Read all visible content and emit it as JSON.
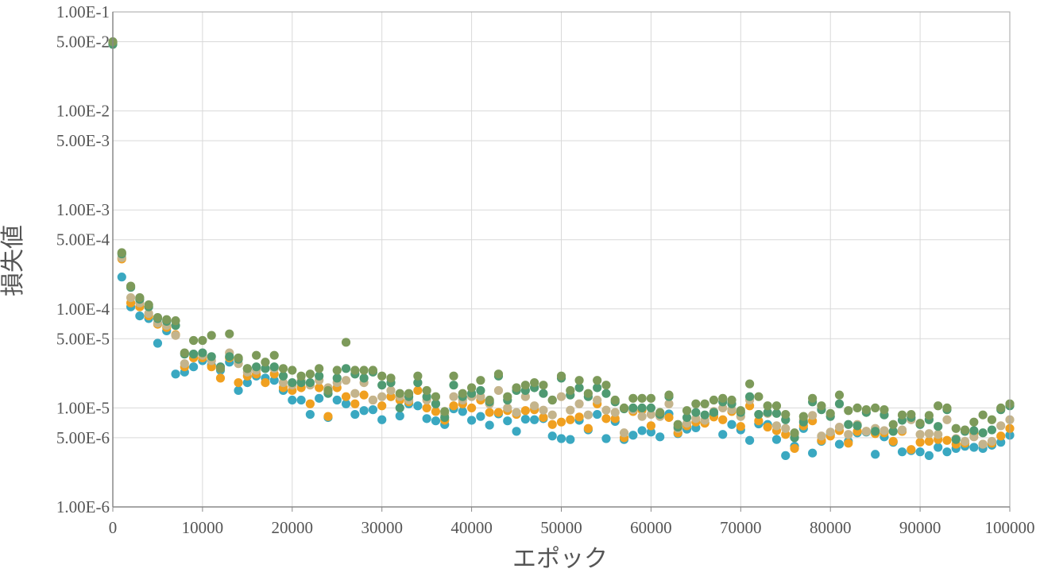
{
  "chart_data": {
    "type": "scatter",
    "xlabel": "エポック",
    "ylabel": "損失値",
    "xlim": [
      0,
      100000
    ],
    "ylim": [
      1e-06,
      0.1
    ],
    "yscale": "log",
    "grid": true,
    "x_ticks": [
      "0",
      "10000",
      "20000",
      "30000",
      "40000",
      "50000",
      "60000",
      "70000",
      "80000",
      "90000",
      "100000"
    ],
    "y_ticks": [
      {
        "value": 0.1,
        "label": "1.00E-1"
      },
      {
        "value": 0.05,
        "label": "5.00E-2"
      },
      {
        "value": 0.01,
        "label": "1.00E-2"
      },
      {
        "value": 0.005,
        "label": "5.00E-3"
      },
      {
        "value": 0.001,
        "label": "1.00E-3"
      },
      {
        "value": 0.0005,
        "label": "5.00E-4"
      },
      {
        "value": 0.0001,
        "label": "1.00E-4"
      },
      {
        "value": 5e-05,
        "label": "5.00E-5"
      },
      {
        "value": 1e-05,
        "label": "1.00E-5"
      },
      {
        "value": 5e-06,
        "label": "5.00E-6"
      },
      {
        "value": 1e-06,
        "label": "1.00E-6"
      }
    ],
    "x": [
      0,
      1000,
      2000,
      3000,
      4000,
      5000,
      6000,
      7000,
      8000,
      9000,
      10000,
      11000,
      12000,
      13000,
      14000,
      15000,
      16000,
      17000,
      18000,
      19000,
      20000,
      21000,
      22000,
      23000,
      24000,
      25000,
      26000,
      27000,
      28000,
      29000,
      30000,
      31000,
      32000,
      33000,
      34000,
      35000,
      36000,
      37000,
      38000,
      39000,
      40000,
      41000,
      42000,
      43000,
      44000,
      45000,
      46000,
      47000,
      48000,
      49000,
      50000,
      51000,
      52000,
      53000,
      54000,
      55000,
      56000,
      57000,
      58000,
      59000,
      60000,
      61000,
      62000,
      63000,
      64000,
      65000,
      66000,
      67000,
      68000,
      69000,
      70000,
      71000,
      72000,
      73000,
      74000,
      75000,
      76000,
      77000,
      78000,
      79000,
      80000,
      81000,
      82000,
      83000,
      84000,
      85000,
      86000,
      87000,
      88000,
      89000,
      90000,
      91000,
      92000,
      93000,
      94000,
      95000,
      96000,
      97000,
      98000,
      99000,
      100000
    ],
    "series": [
      {
        "color": "#3aa8c1",
        "values": [
          0.048,
          0.00021,
          0.000105,
          8.5e-05,
          8e-05,
          4.5e-05,
          6e-05,
          2.2e-05,
          2.3e-05,
          2.6e-05,
          3e-05,
          2.7e-05,
          2.4e-05,
          2.9e-05,
          1.5e-05,
          1.8e-05,
          2.1e-05,
          2e-05,
          1.9e-05,
          1.5e-05,
          1.2e-05,
          1.2e-05,
          8.6e-06,
          1.25e-05,
          8e-06,
          1.2e-05,
          1.1e-05,
          8.6e-06,
          9.4e-06,
          9.6e-06,
          7.6e-06,
          1.3e-05,
          8.3e-06,
          1.1e-05,
          1.05e-05,
          7.8e-06,
          7.4e-06,
          6.8e-06,
          9.8e-06,
          9.2e-06,
          7.5e-06,
          8.2e-06,
          6.7e-06,
          8.7e-06,
          7.4e-06,
          5.8e-06,
          7.7e-06,
          7.6e-06,
          7.8e-06,
          5.2e-06,
          4.9e-06,
          4.8e-06,
          7.5e-06,
          6e-06,
          8.6e-06,
          4.9e-06,
          7.3e-06,
          4.8e-06,
          5.3e-06,
          5.9e-06,
          5.7e-06,
          5.1e-06,
          8.7e-06,
          5.5e-06,
          6.1e-06,
          6.3e-06,
          7.1e-06,
          8.6e-06,
          5.4e-06,
          6.8e-06,
          6e-06,
          4.7e-06,
          6.9e-06,
          6.8e-06,
          4.8e-06,
          3.3e-06,
          4.1e-06,
          6.2e-06,
          3.5e-06,
          4.6e-06,
          5.4e-06,
          4.3e-06,
          4.6e-06,
          5.6e-06,
          5.7e-06,
          3.4e-06,
          5.1e-06,
          4.5e-06,
          3.6e-06,
          3.7e-06,
          3.6e-06,
          3.3e-06,
          4e-06,
          3.6e-06,
          3.9e-06,
          4.1e-06,
          4e-06,
          3.9e-06,
          4.2e-06,
          4.5e-06,
          5.3e-06
        ]
      },
      {
        "color": "#f0a020",
        "values": [
          0.049,
          0.00032,
          0.000115,
          0.000105,
          8.5e-05,
          7e-05,
          6.5e-05,
          5.5e-05,
          2.6e-05,
          3.2e-05,
          3.2e-05,
          2.6e-05,
          2e-05,
          3.2e-05,
          1.8e-05,
          2.1e-05,
          2.2e-05,
          1.8e-05,
          2.2e-05,
          1.6e-05,
          1.5e-05,
          1.6e-05,
          1.1e-05,
          1.6e-05,
          8.2e-06,
          1.6e-05,
          1.3e-05,
          1.1e-05,
          1.35e-05,
          1.2e-05,
          1.05e-05,
          1.3e-05,
          1.2e-05,
          1.15e-05,
          1.5e-05,
          1e-05,
          9.2e-06,
          7.5e-06,
          1.05e-05,
          1.1e-05,
          1e-05,
          1.2e-05,
          9e-06,
          9e-06,
          9.4e-06,
          8.6e-06,
          9.4e-06,
          9.6e-06,
          8e-06,
          6.8e-06,
          7.2e-06,
          7.6e-06,
          8.1e-06,
          6.2e-06,
          1.1e-05,
          7.8e-06,
          7.8e-06,
          5e-06,
          9.2e-06,
          9.5e-06,
          6.6e-06,
          8.3e-06,
          8e-06,
          5.6e-06,
          6.6e-06,
          7.2e-06,
          7e-06,
          8.1e-06,
          7.6e-06,
          9.2e-06,
          6.5e-06,
          1.05e-05,
          7.4e-06,
          6.4e-06,
          5.9e-06,
          5.4e-06,
          3.9e-06,
          6.6e-06,
          7.4e-06,
          4.7e-06,
          5.2e-06,
          5.9e-06,
          4.4e-06,
          5.8e-06,
          5.8e-06,
          5.5e-06,
          5.6e-06,
          4.6e-06,
          5.8e-06,
          3.8e-06,
          4.5e-06,
          4.6e-06,
          4.8e-06,
          4.7e-06,
          4.3e-06,
          4.4e-06,
          5.5e-06,
          4.3e-06,
          4.4e-06,
          5.2e-06,
          6.2e-06
        ]
      },
      {
        "color": "#c4b48c",
        "values": [
          0.049,
          0.00033,
          0.00013,
          0.000115,
          9e-05,
          7.2e-05,
          6.8e-05,
          5.4e-05,
          2.8e-05,
          3.5e-05,
          3.4e-05,
          3e-05,
          2.5e-05,
          3.6e-05,
          2.8e-05,
          2.3e-05,
          2.4e-05,
          2.5e-05,
          2.5e-05,
          1.8e-05,
          1.7e-05,
          1.9e-05,
          1.7e-05,
          1.9e-05,
          1.6e-05,
          1.8e-05,
          1.9e-05,
          1.4e-05,
          1.8e-05,
          1.2e-05,
          1.3e-05,
          1.5e-05,
          1.3e-05,
          1.2e-05,
          1.8e-05,
          1.2e-05,
          1.1e-05,
          8.6e-06,
          1.3e-05,
          1.2e-05,
          1.3e-05,
          1.3e-05,
          1.1e-05,
          1.5e-05,
          1e-05,
          9e-06,
          1.3e-05,
          1.05e-05,
          9.5e-06,
          8.5e-06,
          1.3e-05,
          9.5e-06,
          1.1e-05,
          8.5e-06,
          1.2e-05,
          9.5e-06,
          9e-06,
          5.6e-06,
          9.6e-06,
          8.2e-06,
          8.6e-06,
          8.2e-06,
          1.1e-05,
          6.2e-06,
          7e-06,
          7.8e-06,
          7.5e-06,
          9.2e-06,
          1e-05,
          9.6e-06,
          8.2e-06,
          1.2e-05,
          8.6e-06,
          8.8e-06,
          6.6e-06,
          6.2e-06,
          5.4e-06,
          7.6e-06,
          8.4e-06,
          5.2e-06,
          5.7e-06,
          6.4e-06,
          5.4e-06,
          6.8e-06,
          5.8e-06,
          6.2e-06,
          5.9e-06,
          5.8e-06,
          6e-06,
          7.6e-06,
          5.4e-06,
          5.5e-06,
          5.4e-06,
          7.6e-06,
          4.9e-06,
          4.6e-06,
          5.1e-06,
          4.3e-06,
          4.6e-06,
          6.6e-06,
          7.6e-06
        ]
      },
      {
        "color": "#4f9a72",
        "values": [
          0.047,
          0.00036,
          0.000165,
          0.000125,
          0.000105,
          8e-05,
          7.5e-05,
          6.8e-05,
          3.5e-05,
          3.5e-05,
          3.6e-05,
          3.3e-05,
          2.6e-05,
          3.3e-05,
          3.1e-05,
          2.5e-05,
          2.6e-05,
          2.5e-05,
          2.6e-05,
          2.1e-05,
          1.8e-05,
          1.8e-05,
          1.8e-05,
          2.1e-05,
          1.4e-05,
          2e-05,
          2.5e-05,
          2.2e-05,
          2e-05,
          2.3e-05,
          1.7e-05,
          1.8e-05,
          1e-05,
          1.3e-05,
          1.8e-05,
          1.3e-05,
          1.1e-05,
          8e-06,
          1.7e-05,
          1.3e-05,
          1.4e-05,
          1.5e-05,
          1.15e-05,
          2.1e-05,
          1.2e-05,
          1.5e-05,
          1.5e-05,
          1.6e-05,
          1.4e-05,
          1.2e-05,
          2e-05,
          1.35e-05,
          1.6e-05,
          1.3e-05,
          1.6e-05,
          1.4e-05,
          1.15e-05,
          9.8e-06,
          1e-05,
          1e-05,
          1e-05,
          8.6e-06,
          1.3e-05,
          6.4e-06,
          8e-06,
          9e-06,
          8.5e-06,
          9e-06,
          1.15e-05,
          1.1e-05,
          9e-06,
          1.3e-05,
          8.6e-06,
          9e-06,
          8.8e-06,
          7.6e-06,
          5e-06,
          7.2e-06,
          1.15e-05,
          9.6e-06,
          8.2e-06,
          1.1e-05,
          6.8e-06,
          6.6e-06,
          9e-06,
          5.8e-06,
          8.5e-06,
          5.8e-06,
          7.5e-06,
          8e-06,
          6.8e-06,
          7.6e-06,
          6.5e-06,
          9.6e-06,
          4.8e-06,
          5.8e-06,
          5.9e-06,
          5.6e-06,
          6e-06,
          9.6e-06,
          1.05e-05
        ]
      },
      {
        "color": "#7d9a5a",
        "values": [
          0.05,
          0.00037,
          0.00017,
          0.00013,
          0.00011,
          8.2e-05,
          7.8e-05,
          7.6e-05,
          3.6e-05,
          4.8e-05,
          4.8e-05,
          5.4e-05,
          2.5e-05,
          5.6e-05,
          3.2e-05,
          2.5e-05,
          3.4e-05,
          2.9e-05,
          3.4e-05,
          2.5e-05,
          2.4e-05,
          2.1e-05,
          2.2e-05,
          2.5e-05,
          1.5e-05,
          2.4e-05,
          4.6e-05,
          2.4e-05,
          2.4e-05,
          2.4e-05,
          2.1e-05,
          2e-05,
          1.4e-05,
          1.4e-05,
          2.1e-05,
          1.5e-05,
          1.3e-05,
          9.2e-06,
          2.1e-05,
          1.4e-05,
          1.6e-05,
          1.9e-05,
          1.2e-05,
          2.2e-05,
          1.3e-05,
          1.6e-05,
          1.7e-05,
          1.8e-05,
          1.7e-05,
          1.2e-05,
          2.1e-05,
          1.5e-05,
          1.9e-05,
          1.4e-05,
          1.9e-05,
          1.7e-05,
          1.2e-05,
          1e-05,
          1.25e-05,
          1.25e-05,
          1.25e-05,
          9e-06,
          1.35e-05,
          6.8e-06,
          9.4e-06,
          1.1e-05,
          1.1e-05,
          1.2e-05,
          1.25e-05,
          1.2e-05,
          9.4e-06,
          1.75e-05,
          1.3e-05,
          1.05e-05,
          1.05e-05,
          8.6e-06,
          5.6e-06,
          8.2e-06,
          1.25e-05,
          1.05e-05,
          8.8e-06,
          1.35e-05,
          9.4e-06,
          1e-05,
          9.6e-06,
          1e-05,
          9.6e-06,
          6.8e-06,
          8.5e-06,
          8.6e-06,
          7e-06,
          8.4e-06,
          1.05e-05,
          1e-05,
          6.2e-06,
          6e-06,
          7.2e-06,
          8.5e-06,
          7.6e-06,
          1e-05,
          1.1e-05
        ]
      }
    ]
  }
}
